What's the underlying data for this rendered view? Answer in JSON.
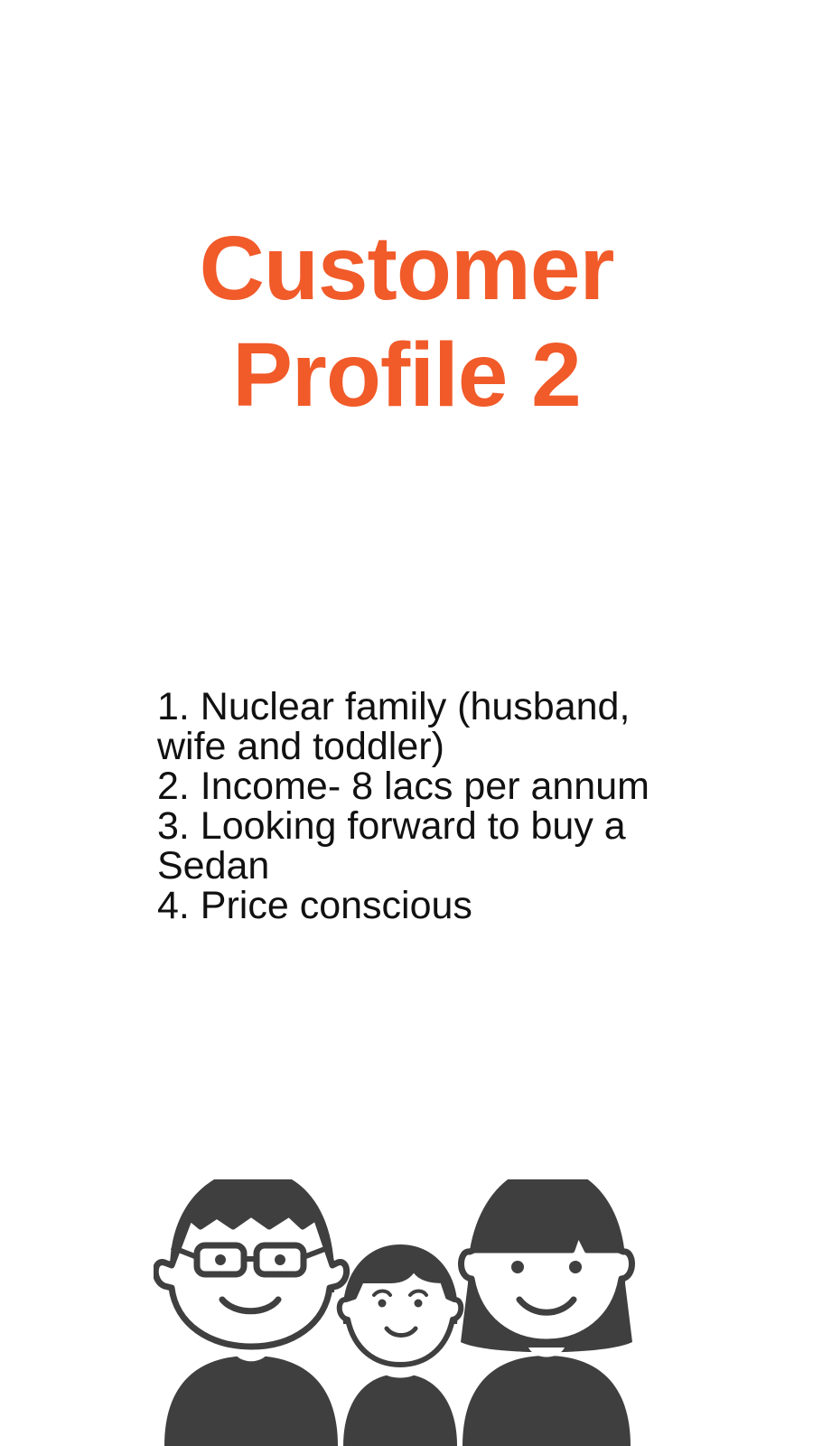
{
  "title": {
    "line1": "Customer",
    "line2": "Profile 2"
  },
  "points": [
    "1. Nuclear family (husband, wife and toddler)",
    "2. Income- 8 lacs per annum",
    "3. Looking forward to buy a Sedan",
    "4. Price conscious"
  ],
  "illustration": {
    "icon": "family-icon",
    "color": "#3f3f3f"
  },
  "colors": {
    "accent": "#f15a29",
    "text": "#111111",
    "background": "#ffffff"
  }
}
